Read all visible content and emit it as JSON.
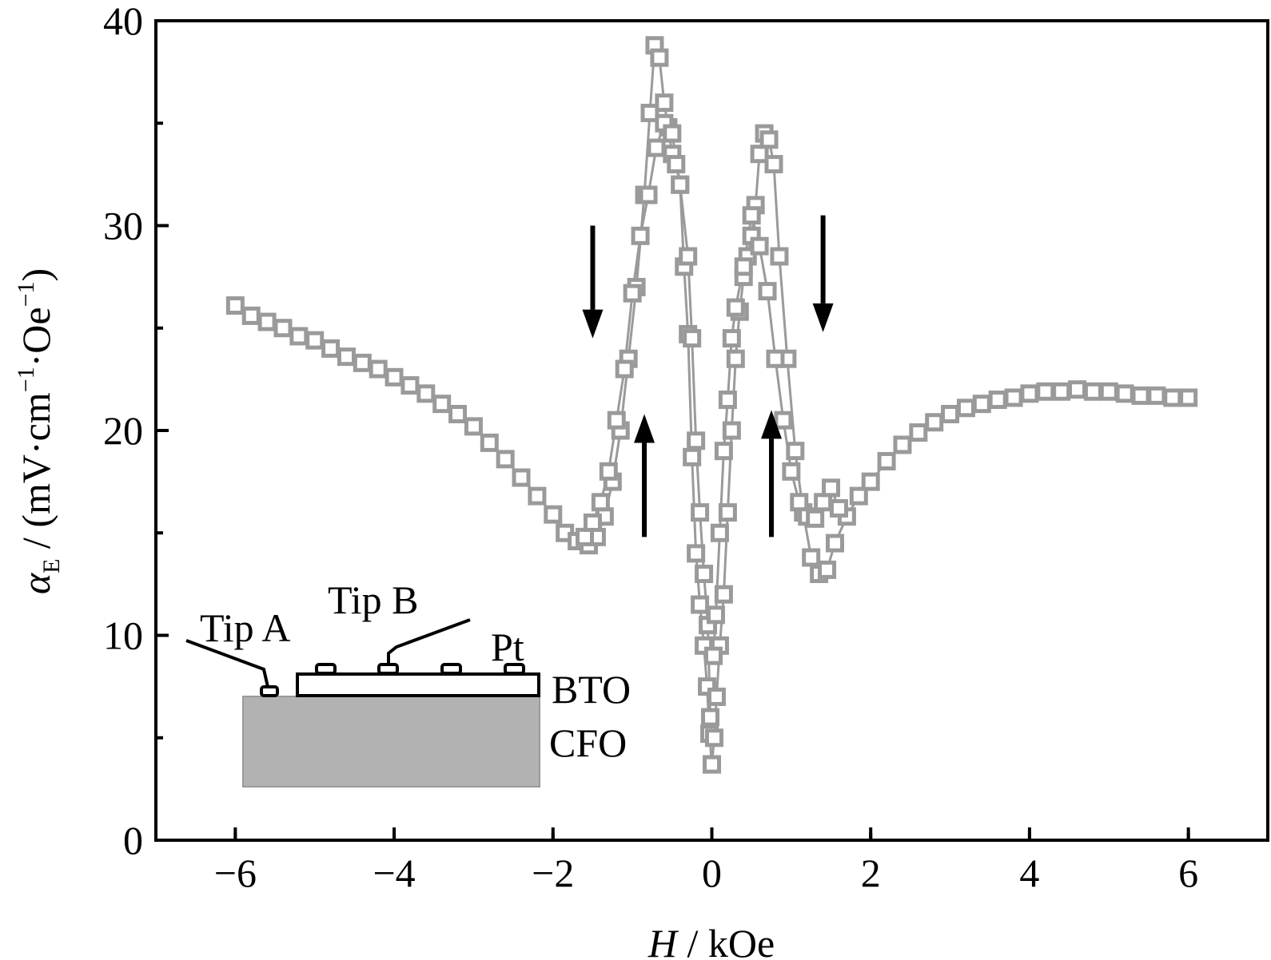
{
  "chart_data": {
    "type": "scatter",
    "xlabel": {
      "italic": "H",
      "rest": " / kOe"
    },
    "ylabel": {
      "symbol": "α",
      "subscript": "E",
      "units": " / (mV·cm",
      "exp": "−1",
      "units2": "·Oe",
      "exp2": "−1",
      "close": ")"
    },
    "xlim": [
      -7,
      7
    ],
    "ylim": [
      0,
      40
    ],
    "xticks": [
      -6,
      -4,
      -2,
      0,
      2,
      4,
      6
    ],
    "xtick_labels": [
      "−6",
      "−4",
      "−2",
      "0",
      "2",
      "4",
      "6"
    ],
    "yticks": [
      0,
      10,
      20,
      30,
      40
    ],
    "ytick_labels": [
      "0",
      "10",
      "20",
      "30",
      "40"
    ],
    "marker": "open-square",
    "marker_color": "#9a9a9a",
    "series": [
      {
        "x": [
          -6.0,
          -5.8,
          -5.6,
          -5.4,
          -5.2,
          -5.0,
          -4.8,
          -4.6,
          -4.4,
          -4.2,
          -4.0,
          -3.8,
          -3.6,
          -3.4,
          -3.2,
          -3.0,
          -2.8,
          -2.6,
          -2.4,
          -2.2,
          -2.0,
          -1.85,
          -1.7,
          -1.55,
          -1.45,
          -1.35,
          -1.25,
          -1.15,
          -1.05,
          -0.95,
          -0.85,
          -0.78,
          -0.72,
          -0.66,
          -0.6,
          -0.55,
          -0.5,
          -0.45,
          -0.4,
          -0.35,
          -0.3,
          -0.25,
          -0.2,
          -0.15,
          -0.1,
          -0.06,
          -0.03,
          0.0
        ],
        "y": [
          26.1,
          25.6,
          25.3,
          25.0,
          24.6,
          24.4,
          24.0,
          23.6,
          23.3,
          23.0,
          22.6,
          22.2,
          21.8,
          21.3,
          20.8,
          20.2,
          19.4,
          18.6,
          17.7,
          16.8,
          15.9,
          15.0,
          14.6,
          14.4,
          14.8,
          15.8,
          17.5,
          20.0,
          23.5,
          27.0,
          31.5,
          35.5,
          38.8,
          38.2,
          36.0,
          34.8,
          33.5,
          33.0,
          32.0,
          28.0,
          24.7,
          18.7,
          14.0,
          11.5,
          9.5,
          7.5,
          5.2,
          3.7
        ]
      },
      {
        "x": [
          0.0,
          0.03,
          0.06,
          0.1,
          0.15,
          0.2,
          0.25,
          0.3,
          0.35,
          0.4,
          0.45,
          0.5,
          0.55,
          0.6,
          0.66,
          0.72,
          0.78,
          0.85,
          0.95,
          1.05,
          1.15,
          1.25,
          1.35,
          1.45,
          1.55,
          1.7,
          1.85,
          2.0,
          2.2,
          2.4,
          2.6,
          2.8,
          3.0,
          3.2,
          3.4,
          3.6,
          3.8,
          4.0,
          4.2,
          4.4,
          4.6,
          4.8,
          5.0,
          5.2,
          5.4,
          5.6,
          5.8,
          6.0
        ],
        "y": [
          3.7,
          5.0,
          7.0,
          9.5,
          12.0,
          16.0,
          20.0,
          23.5,
          25.8,
          27.5,
          28.5,
          29.5,
          31.0,
          33.5,
          34.5,
          34.2,
          33.0,
          28.5,
          23.5,
          19.0,
          16.0,
          13.8,
          13.0,
          13.2,
          14.5,
          15.8,
          16.8,
          17.5,
          18.5,
          19.3,
          19.9,
          20.4,
          20.8,
          21.1,
          21.3,
          21.5,
          21.6,
          21.8,
          21.9,
          21.9,
          22.0,
          21.9,
          21.9,
          21.8,
          21.7,
          21.7,
          21.6,
          21.6
        ]
      },
      {
        "x": [
          -1.6,
          -1.5,
          -1.4,
          -1.3,
          -1.2,
          -1.1,
          -1.0,
          -0.9,
          -0.8,
          -0.7,
          -0.6,
          -0.5,
          -0.4,
          -0.3,
          -0.25,
          -0.2,
          -0.15,
          -0.1,
          -0.05,
          -0.02
        ],
        "y": [
          14.8,
          15.5,
          16.5,
          18.0,
          20.5,
          23.0,
          26.7,
          29.5,
          31.5,
          33.8,
          35.0,
          34.5,
          32.0,
          28.5,
          24.5,
          19.5,
          16.0,
          13.0,
          10.5,
          6.0
        ]
      },
      {
        "x": [
          0.02,
          0.05,
          0.1,
          0.15,
          0.2,
          0.25,
          0.3,
          0.4,
          0.5,
          0.6,
          0.7,
          0.8,
          0.9,
          1.0,
          1.1,
          1.2,
          1.3,
          1.4,
          1.5,
          1.6
        ],
        "y": [
          9.0,
          11.0,
          15.0,
          19.0,
          21.5,
          24.5,
          26.0,
          28.0,
          30.5,
          29.0,
          26.8,
          23.5,
          20.5,
          18.0,
          16.5,
          15.8,
          15.7,
          16.5,
          17.2,
          16.2
        ]
      }
    ],
    "arrows": [
      {
        "direction": "down",
        "x": -1.5,
        "y_from": 30.0,
        "y_to": 24.5
      },
      {
        "direction": "up",
        "x": -0.85,
        "y_from": 14.8,
        "y_to": 20.8
      },
      {
        "direction": "up",
        "x": 0.75,
        "y_from": 14.8,
        "y_to": 21.0
      },
      {
        "direction": "down",
        "x": 1.4,
        "y_from": 30.5,
        "y_to": 24.8
      }
    ],
    "inset": {
      "labels": {
        "tip_a": "Tip A",
        "tip_b": "Tip B",
        "pt": "Pt",
        "bto": "BTO",
        "cfo": "CFO"
      },
      "cfo_color": "#b2b2b2"
    }
  }
}
